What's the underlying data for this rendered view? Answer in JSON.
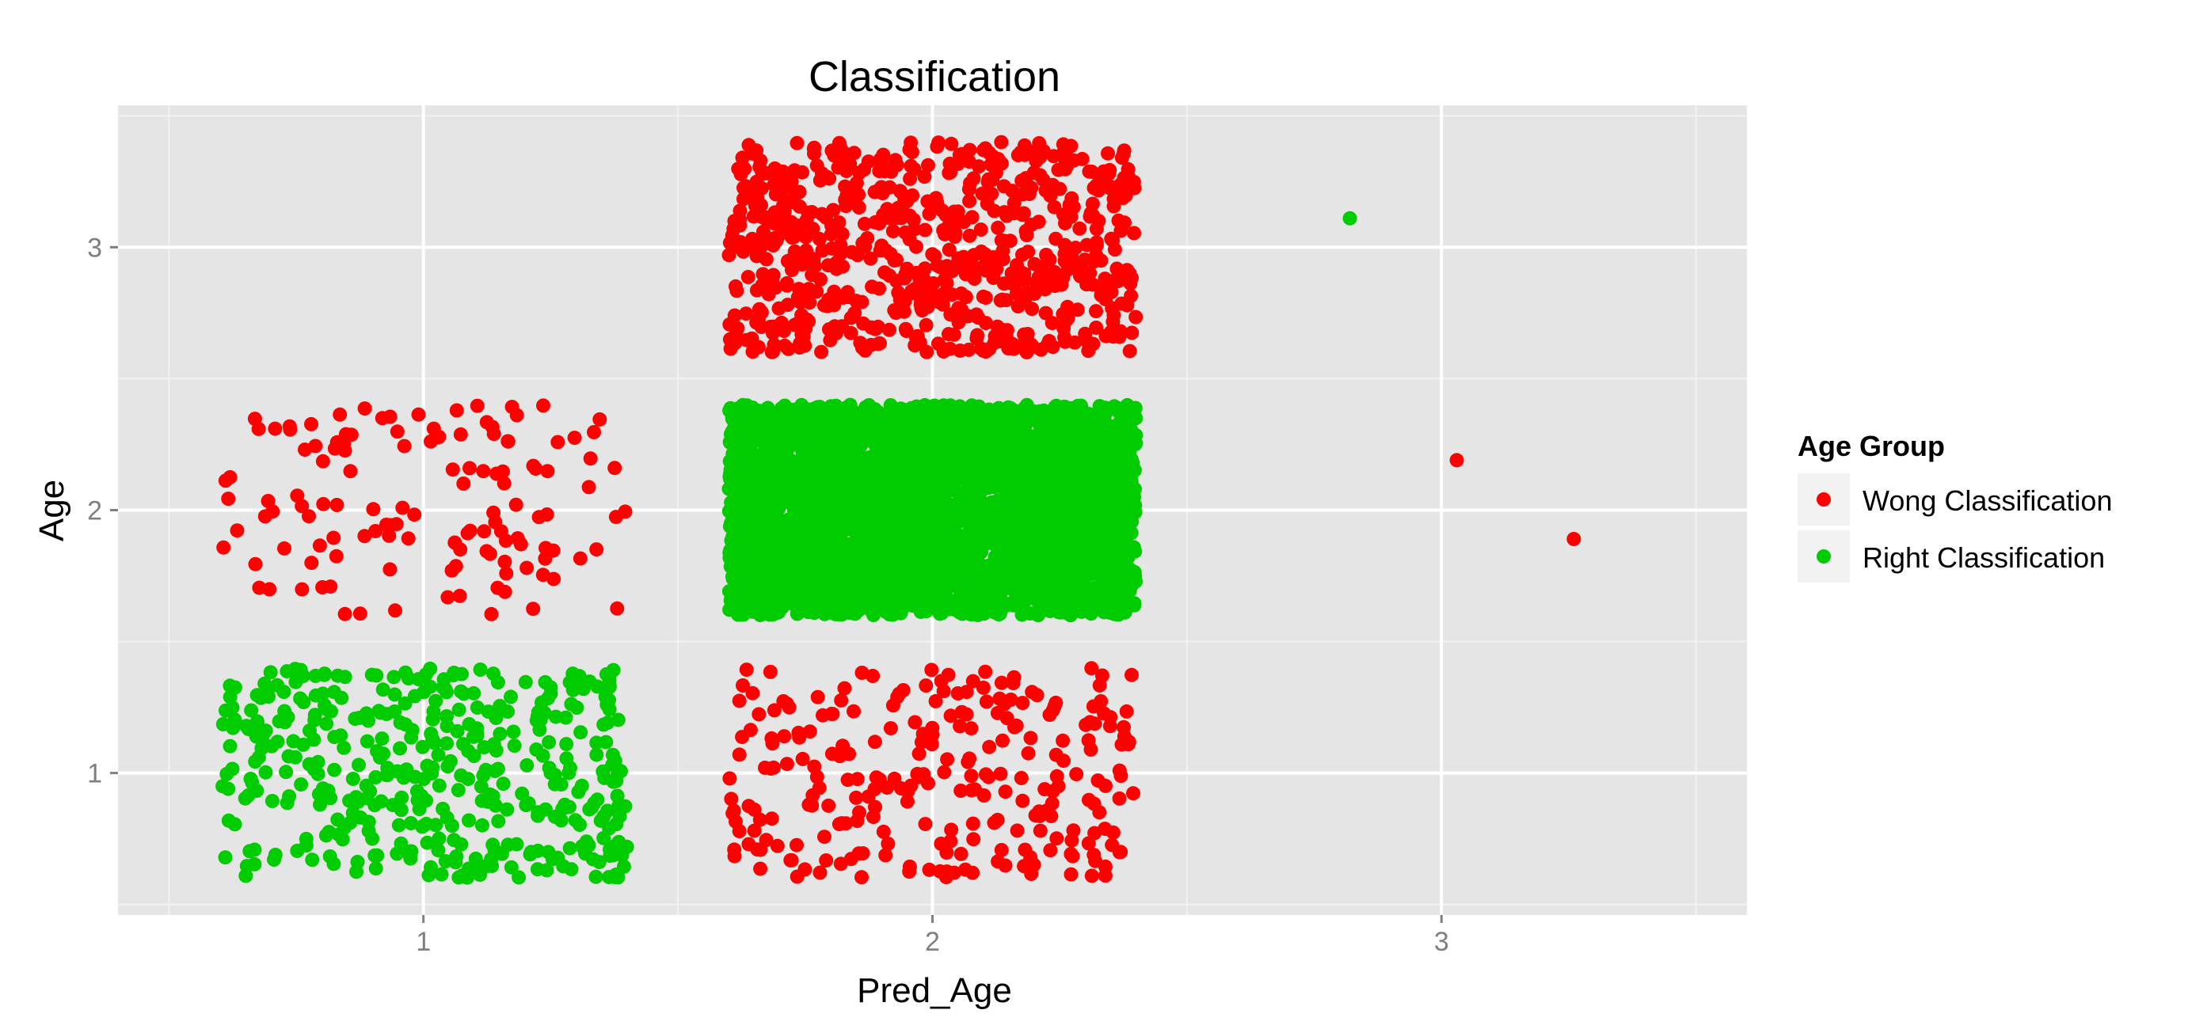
{
  "chart_data": {
    "type": "scatter",
    "title": "Classification",
    "xlabel": "Pred_Age",
    "ylabel": "Age",
    "xlim": [
      0.4,
      3.6
    ],
    "ylim": [
      0.46,
      3.54
    ],
    "x_ticks": [
      "1",
      "2",
      "3"
    ],
    "y_ticks": [
      "1",
      "2",
      "3"
    ],
    "grid": true,
    "legend": {
      "title": "Age Group",
      "position": "right"
    },
    "colors": {
      "wrong": "#ff0000",
      "right": "#00cc00",
      "panel": "#e5e5e5",
      "grid": "#ffffff"
    },
    "series": [
      {
        "name": "Wong Classification",
        "color": "#ff0000",
        "groups": [
          {
            "pred_age": 1,
            "age": 2,
            "count": 130
          },
          {
            "pred_age": 2,
            "age": 1,
            "count": 260
          },
          {
            "pred_age": 2,
            "age": 3,
            "count": 700
          }
        ],
        "points": [
          {
            "x": 3.03,
            "y": 2.19
          },
          {
            "x": 3.26,
            "y": 1.89
          }
        ]
      },
      {
        "name": "Right Classification",
        "color": "#00cc00",
        "groups": [
          {
            "pred_age": 1,
            "age": 1,
            "count": 420
          },
          {
            "pred_age": 2,
            "age": 2,
            "count": 3500
          }
        ],
        "points": [
          {
            "x": 2.82,
            "y": 3.11
          }
        ]
      }
    ],
    "jitter": {
      "x": 0.4,
      "y": 0.4
    }
  }
}
